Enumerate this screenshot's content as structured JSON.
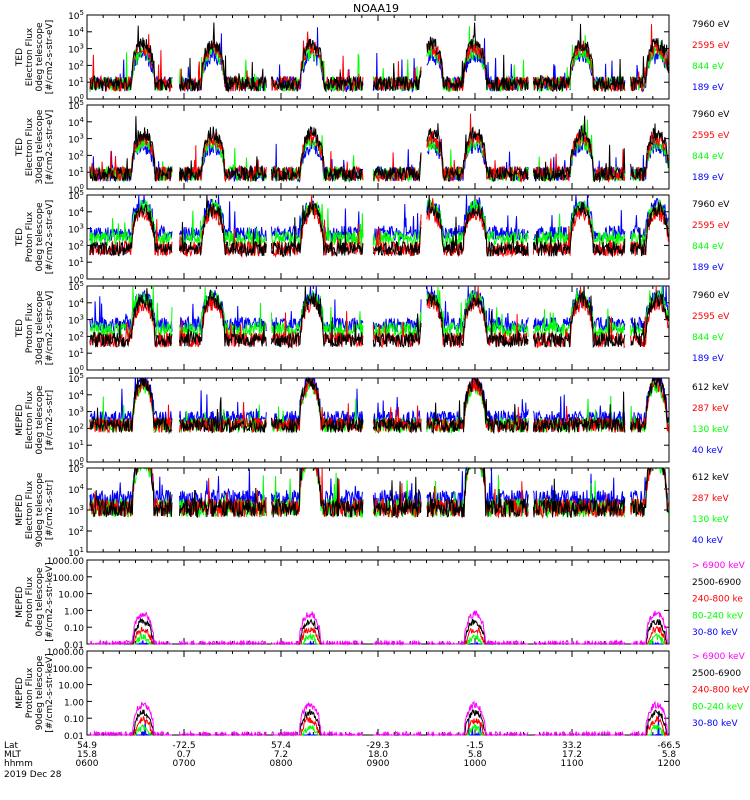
{
  "title": "NOAA19",
  "colors": {
    "black": "#000000",
    "red": "#ff0000",
    "green": "#00ff00",
    "blue": "#0000ff",
    "magenta": "#ff00ff"
  },
  "panels": [
    {
      "ylabel": [
        "TED",
        "Electron Flux",
        "0deg telescope",
        "[#/cm2-s-str-eV]"
      ],
      "yscale": "log",
      "ylim": [
        1,
        100000
      ],
      "ticks": [
        "10^0",
        "10^1",
        "10^2",
        "10^3",
        "10^4",
        "10^5"
      ],
      "legend": [
        {
          "label": "7960 eV",
          "color": "black"
        },
        {
          "label": "2595 eV",
          "color": "red"
        },
        {
          "label": "844 eV",
          "color": "green"
        },
        {
          "label": "189 eV",
          "color": "blue"
        }
      ]
    },
    {
      "ylabel": [
        "TED",
        "Electron Flux",
        "30deg telescope",
        "[#/cm2-s-str-eV]"
      ],
      "yscale": "log",
      "ylim": [
        1,
        100000
      ],
      "ticks": [
        "10^0",
        "10^1",
        "10^2",
        "10^3",
        "10^4",
        "10^5"
      ],
      "legend": [
        {
          "label": "7960 eV",
          "color": "black"
        },
        {
          "label": "2595 eV",
          "color": "red"
        },
        {
          "label": "844 eV",
          "color": "green"
        },
        {
          "label": "189 eV",
          "color": "blue"
        }
      ]
    },
    {
      "ylabel": [
        "TED",
        "Proton Flux",
        "0deg telescope",
        "[#/cm2-s-str-eV]"
      ],
      "yscale": "log",
      "ylim": [
        1,
        100000
      ],
      "ticks": [
        "10^0",
        "10^1",
        "10^2",
        "10^3",
        "10^4",
        "10^5"
      ],
      "legend": [
        {
          "label": "7960 eV",
          "color": "black"
        },
        {
          "label": "2595 eV",
          "color": "red"
        },
        {
          "label": "844 eV",
          "color": "green"
        },
        {
          "label": "189 eV",
          "color": "blue"
        }
      ]
    },
    {
      "ylabel": [
        "TED",
        "Proton Flux",
        "30deg telescope",
        "[#/cm2-s-str-eV]"
      ],
      "yscale": "log",
      "ylim": [
        1,
        100000
      ],
      "ticks": [
        "10^0",
        "10^1",
        "10^2",
        "10^3",
        "10^4",
        "10^5"
      ],
      "legend": [
        {
          "label": "7960 eV",
          "color": "black"
        },
        {
          "label": "2595 eV",
          "color": "red"
        },
        {
          "label": "844 eV",
          "color": "green"
        },
        {
          "label": "189 eV",
          "color": "blue"
        }
      ]
    },
    {
      "ylabel": [
        "MEPED",
        "Electron Flux",
        "0deg telescope",
        "[#/cm2-s-str]"
      ],
      "yscale": "log",
      "ylim": [
        1,
        100000
      ],
      "ticks": [
        "10^0",
        "10^1",
        "10^2",
        "10^3",
        "10^4",
        "10^5"
      ],
      "legend": [
        {
          "label": "612 keV",
          "color": "black"
        },
        {
          "label": "287 keV",
          "color": "red"
        },
        {
          "label": "130 keV",
          "color": "green"
        },
        {
          "label": "40 keV",
          "color": "blue"
        }
      ]
    },
    {
      "ylabel": [
        "MEPED",
        "Electron Flux",
        "90deg telescope",
        "[#/cm2-s-str]"
      ],
      "yscale": "log",
      "ylim": [
        10,
        100000
      ],
      "ticks": [
        "10^1",
        "10^2",
        "10^3",
        "10^4",
        "10^5"
      ],
      "legend": [
        {
          "label": "612 keV",
          "color": "black"
        },
        {
          "label": "287 keV",
          "color": "red"
        },
        {
          "label": "130 keV",
          "color": "green"
        },
        {
          "label": "40 keV",
          "color": "blue"
        }
      ]
    },
    {
      "ylabel": [
        "MEPED",
        "Proton Flux",
        "0deg telescope",
        "[#/cm2-s-str-keV]"
      ],
      "yscale": "log",
      "ylim": [
        0.01,
        1000
      ],
      "ticks": [
        "0.01",
        "0.10",
        "1.00",
        "10.00",
        "100.00",
        "1000.00"
      ],
      "legend": [
        {
          "label": "> 6900 keV",
          "color": "magenta"
        },
        {
          "label": "2500-6900",
          "color": "black"
        },
        {
          "label": "240-800 ke",
          "color": "red"
        },
        {
          "label": "80-240 keV",
          "color": "green"
        },
        {
          "label": "30-80 keV",
          "color": "blue"
        }
      ]
    },
    {
      "ylabel": [
        "MEPED",
        "Proton Flux",
        "90deg telescope",
        "[#/cm2-s-str-keV]"
      ],
      "yscale": "log",
      "ylim": [
        0.01,
        1000
      ],
      "ticks": [
        "0.01",
        "0.10",
        "1.00",
        "10.00",
        "100.00",
        "1000.00"
      ],
      "legend": [
        {
          "label": "> 6900 keV",
          "color": "magenta"
        },
        {
          "label": "2500-6900",
          "color": "black"
        },
        {
          "label": "240-800 keV",
          "color": "red"
        },
        {
          "label": "80-240 keV",
          "color": "green"
        },
        {
          "label": "30-80 keV",
          "color": "blue"
        }
      ]
    }
  ],
  "xaxis": {
    "row_labels": [
      "Lat",
      "MLT",
      "hhmm",
      "2019 Dec 28"
    ],
    "lat": [
      "54.9",
      "-72.5",
      "57.4",
      "-29.3",
      "-1.5",
      "33.2",
      "-66.5"
    ],
    "mlt": [
      "15.8",
      "0.7",
      "7.2",
      "18.0",
      "5.8",
      "17.2",
      "5.8"
    ],
    "hhmm": [
      "0600",
      "0700",
      "0800",
      "0900",
      "1000",
      "1100",
      "1200"
    ]
  },
  "chart_data": {
    "type": "line",
    "title": "NOAA19",
    "x_time_hhmm": [
      "0600",
      "0700",
      "0800",
      "0900",
      "1000",
      "1100",
      "1200"
    ],
    "panels": [
      {
        "name": "TED Electron Flux 0deg",
        "series": [
          "7960 eV",
          "2595 eV",
          "844 eV",
          "189 eV"
        ],
        "ylim": [
          1,
          100000
        ],
        "yscale": "log"
      },
      {
        "name": "TED Electron Flux 30deg",
        "series": [
          "7960 eV",
          "2595 eV",
          "844 eV",
          "189 eV"
        ],
        "ylim": [
          1,
          100000
        ],
        "yscale": "log"
      },
      {
        "name": "TED Proton Flux 0deg",
        "series": [
          "7960 eV",
          "2595 eV",
          "844 eV",
          "189 eV"
        ],
        "ylim": [
          1,
          100000
        ],
        "yscale": "log"
      },
      {
        "name": "TED Proton Flux 30deg",
        "series": [
          "7960 eV",
          "2595 eV",
          "844 eV",
          "189 eV"
        ],
        "ylim": [
          1,
          100000
        ],
        "yscale": "log"
      },
      {
        "name": "MEPED Electron Flux 0deg",
        "series": [
          "612 keV",
          "287 keV",
          "130 keV",
          "40 keV"
        ],
        "ylim": [
          1,
          100000
        ],
        "yscale": "log",
        "peaks_hhmm": [
          "0635",
          "0818",
          "1000",
          "1152"
        ]
      },
      {
        "name": "MEPED Electron Flux 90deg",
        "series": [
          "612 keV",
          "287 keV",
          "130 keV",
          "40 keV"
        ],
        "ylim": [
          10,
          100000
        ],
        "yscale": "log",
        "peaks_hhmm": [
          "0635",
          "0818",
          "1000",
          "1152"
        ]
      },
      {
        "name": "MEPED Proton Flux 0deg",
        "series": [
          "> 6900 keV",
          "2500-6900",
          "240-800 ke",
          "80-240 keV",
          "30-80 keV"
        ],
        "ylim": [
          0.01,
          1000
        ],
        "yscale": "log",
        "peaks_hhmm": [
          "0635",
          "0818",
          "1000",
          "1152"
        ]
      },
      {
        "name": "MEPED Proton Flux 90deg",
        "series": [
          "> 6900 keV",
          "2500-6900",
          "240-800 keV",
          "80-240 keV",
          "30-80 keV"
        ],
        "ylim": [
          0.01,
          1000
        ],
        "yscale": "log",
        "peaks_hhmm": [
          "0635",
          "0818",
          "1000",
          "1152"
        ]
      }
    ]
  }
}
